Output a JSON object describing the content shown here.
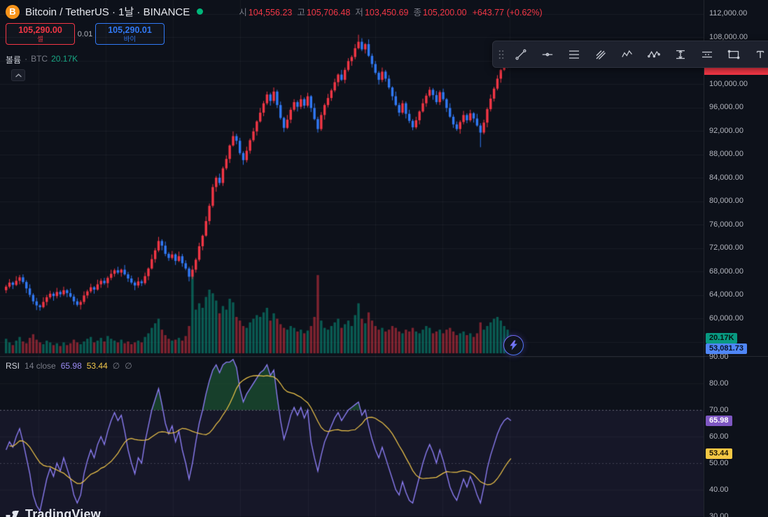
{
  "header": {
    "symbol_title": "Bitcoin / TetherUS · 1날 · BINANCE",
    "ohlc": {
      "open_label": "시",
      "open": "104,556.23",
      "high_label": "고",
      "high": "105,706.48",
      "low_label": "저",
      "low": "103,450.69",
      "close_label": "종",
      "close": "105,200.00",
      "change": "+643.77 (+0.62%)"
    }
  },
  "trade_widget": {
    "sell_price": "105,290.00",
    "sell_label": "셀",
    "spread": "0.01",
    "buy_price": "105,290.01",
    "buy_label": "바이"
  },
  "volume_legend": {
    "title": "볼륨",
    "separator": "·",
    "unit": "BTC",
    "value": "20.17K"
  },
  "rsi_legend": {
    "title": "RSI",
    "params": "14 close",
    "value": "65.98",
    "ma_value": "53.44",
    "extra1": "∅",
    "extra2": "∅"
  },
  "toolbar": {
    "tools": [
      "drag-handle",
      "trend-line",
      "horizontal-line",
      "fib-retracement",
      "pitchfork",
      "elliott-wave",
      "xabcd-pattern",
      "price-range",
      "parallel-channel",
      "rectangle",
      "text"
    ]
  },
  "axis": {
    "price_ticks": [
      {
        "label": "112,000.00",
        "value": 112000
      },
      {
        "label": "108,000.00",
        "value": 108000
      },
      {
        "label": "100,000.00",
        "value": 100000
      },
      {
        "label": "96,000.00",
        "value": 96000
      },
      {
        "label": "92,000.00",
        "value": 92000
      },
      {
        "label": "88,000.00",
        "value": 88000
      },
      {
        "label": "84,000.00",
        "value": 84000
      },
      {
        "label": "80,000.00",
        "value": 80000
      },
      {
        "label": "76,000.00",
        "value": 76000
      },
      {
        "label": "72,000.00",
        "value": 72000
      },
      {
        "label": "68,000.00",
        "value": 68000
      },
      {
        "label": "64,000.00",
        "value": 64000
      },
      {
        "label": "60,000.00",
        "value": 60000
      }
    ],
    "rsi_ticks": [
      {
        "label": "90.00",
        "value": 90
      },
      {
        "label": "80.00",
        "value": 80
      },
      {
        "label": "70.00",
        "value": 70
      },
      {
        "label": "60.00",
        "value": 60
      },
      {
        "label": "50.00",
        "value": 50
      },
      {
        "label": "40.00",
        "value": 40
      },
      {
        "label": "30.00",
        "value": 30
      }
    ],
    "volume_badges": {
      "volume": "20.17K",
      "volume_ma": "53,081.73"
    },
    "rsi_badges": {
      "value": "65.98",
      "ma": "53.44"
    }
  },
  "logo": {
    "text": "TradingView"
  },
  "colors": {
    "background": "#0d111a",
    "up": "#f23645",
    "down": "#3179f5",
    "volume_up": "rgba(8,153,129,0.55)",
    "volume_down": "rgba(242,54,69,0.5)",
    "rsi_line": "#8a7cf0",
    "rsi_ma": "#f0c64a",
    "rsi_badge": "#7e57c2",
    "rsi_ma_badge": "#f5c844",
    "volume_badge": "#089981",
    "volume_ma_badge": "#4f86f7",
    "price_badge": "#f23645",
    "status_dot": "#00b67a",
    "bitcoin": "#f7931a",
    "band_fill": "rgba(126,87,194,0.09)",
    "overbought_fill": "rgba(34,110,60,0.5)",
    "grid": "rgba(255,255,255,0.05)"
  },
  "chart_data": {
    "type": "candlestick",
    "symbol": "Bitcoin / TetherUS",
    "exchange": "BINANCE",
    "interval": "1D",
    "ohlc_today": {
      "open": 104556.23,
      "high": 105706.48,
      "low": 103450.69,
      "close": 105200.0,
      "change": 643.77,
      "change_pct": 0.62
    },
    "volume_current_btc": 20170,
    "volume_ma_current": 53081.73,
    "price_axis_visible_range": [
      56000,
      113000
    ],
    "candles": [
      [
        64800,
        65700,
        64300,
        65400
      ],
      [
        65400,
        66700,
        65100,
        66100
      ],
      [
        66100,
        66300,
        65000,
        65700
      ],
      [
        65700,
        67200,
        65500,
        66400
      ],
      [
        66400,
        67400,
        65800,
        67000
      ],
      [
        67000,
        67500,
        65900,
        66200
      ],
      [
        66200,
        66500,
        64300,
        65100
      ],
      [
        65100,
        65800,
        63600,
        64000
      ],
      [
        64000,
        64300,
        62400,
        62900
      ],
      [
        62900,
        63500,
        61400,
        62200
      ],
      [
        62200,
        62400,
        61300,
        61900
      ],
      [
        61900,
        63600,
        61700,
        62800
      ],
      [
        62800,
        64000,
        62200,
        63600
      ],
      [
        63600,
        64700,
        63300,
        64200
      ],
      [
        64200,
        64500,
        63000,
        63800
      ],
      [
        63800,
        65200,
        63400,
        64500
      ],
      [
        64500,
        64800,
        63600,
        64100
      ],
      [
        64100,
        65400,
        63800,
        64800
      ],
      [
        64800,
        65000,
        63600,
        64300
      ],
      [
        64300,
        65100,
        63500,
        63700
      ],
      [
        63700,
        64100,
        62300,
        62900
      ],
      [
        62900,
        63400,
        62000,
        62300
      ],
      [
        62300,
        63100,
        61500,
        62800
      ],
      [
        62800,
        64600,
        62400,
        63900
      ],
      [
        63900,
        64900,
        63400,
        64600
      ],
      [
        64600,
        65900,
        64300,
        65300
      ],
      [
        65300,
        65500,
        64200,
        64900
      ],
      [
        64900,
        66600,
        64700,
        65800
      ],
      [
        65800,
        66800,
        65200,
        66400
      ],
      [
        66400,
        66900,
        65700,
        66000
      ],
      [
        66000,
        67200,
        65200,
        66900
      ],
      [
        66900,
        68300,
        66500,
        67600
      ],
      [
        67600,
        68500,
        67100,
        68200
      ],
      [
        68200,
        68800,
        67500,
        67800
      ],
      [
        67800,
        68500,
        67100,
        68300
      ],
      [
        68300,
        69100,
        67300,
        67500
      ],
      [
        67500,
        67900,
        66200,
        66800
      ],
      [
        66800,
        67300,
        65800,
        66100
      ],
      [
        66100,
        66400,
        64800,
        65600
      ],
      [
        65600,
        67000,
        65200,
        66300
      ],
      [
        66300,
        66600,
        65500,
        66000
      ],
      [
        66000,
        67800,
        65700,
        67200
      ],
      [
        67200,
        68700,
        66500,
        68500
      ],
      [
        68500,
        70900,
        68300,
        70100
      ],
      [
        70100,
        72000,
        69500,
        71600
      ],
      [
        71600,
        73900,
        71300,
        73200
      ],
      [
        73200,
        73500,
        71600,
        72400
      ],
      [
        72400,
        73100,
        70600,
        71000
      ],
      [
        71000,
        71300,
        69800,
        70300
      ],
      [
        70300,
        71500,
        70000,
        70900
      ],
      [
        70900,
        71100,
        69100,
        69800
      ],
      [
        69800,
        71400,
        69600,
        70600
      ],
      [
        70600,
        71000,
        68800,
        69400
      ],
      [
        69400,
        69900,
        68200,
        68500
      ],
      [
        68500,
        68800,
        66300,
        67100
      ],
      [
        67100,
        69000,
        66700,
        68300
      ],
      [
        68300,
        70300,
        67800,
        70000
      ],
      [
        70000,
        72900,
        69700,
        72300
      ],
      [
        72300,
        74300,
        71600,
        74100
      ],
      [
        74100,
        77400,
        73900,
        76600
      ],
      [
        76600,
        79600,
        76000,
        79200
      ],
      [
        79200,
        82900,
        78900,
        82400
      ],
      [
        82400,
        84300,
        81600,
        84000
      ],
      [
        84000,
        84700,
        82700,
        83100
      ],
      [
        83100,
        85900,
        82600,
        85600
      ],
      [
        85600,
        87800,
        85300,
        87200
      ],
      [
        87200,
        89700,
        86500,
        89500
      ],
      [
        89500,
        91900,
        89300,
        91100
      ],
      [
        91100,
        91500,
        89700,
        90300
      ],
      [
        90300,
        90800,
        87900,
        88200
      ],
      [
        88200,
        88500,
        86200,
        87000
      ],
      [
        87000,
        89300,
        86600,
        88600
      ],
      [
        88600,
        90700,
        88100,
        90400
      ],
      [
        90400,
        92500,
        90100,
        91900
      ],
      [
        91900,
        93800,
        91200,
        93600
      ],
      [
        93600,
        95900,
        93400,
        95100
      ],
      [
        95100,
        97100,
        94500,
        96700
      ],
      [
        96700,
        98700,
        96400,
        98200
      ],
      [
        98200,
        98500,
        96300,
        97100
      ],
      [
        97100,
        99400,
        96700,
        98700
      ],
      [
        98700,
        99000,
        95900,
        96400
      ],
      [
        96400,
        97000,
        93900,
        94200
      ],
      [
        94200,
        94400,
        91800,
        92500
      ],
      [
        92500,
        94700,
        92300,
        93900
      ],
      [
        93900,
        96000,
        93300,
        95600
      ],
      [
        95600,
        97400,
        95300,
        96900
      ],
      [
        96900,
        97200,
        95300,
        96100
      ],
      [
        96100,
        98100,
        95700,
        97400
      ],
      [
        97400,
        97700,
        95800,
        96300
      ],
      [
        96300,
        98500,
        96000,
        97900
      ],
      [
        97900,
        98100,
        95200,
        95900
      ],
      [
        95900,
        96700,
        93800,
        94000
      ],
      [
        94000,
        94400,
        91700,
        92300
      ],
      [
        92300,
        95200,
        92000,
        94700
      ],
      [
        94700,
        96700,
        93900,
        96400
      ],
      [
        96400,
        98300,
        96000,
        97600
      ],
      [
        97600,
        99200,
        97100,
        98900
      ],
      [
        98900,
        100900,
        98600,
        100300
      ],
      [
        100300,
        101800,
        99600,
        101600
      ],
      [
        101600,
        102400,
        100500,
        100700
      ],
      [
        100700,
        102800,
        100100,
        102400
      ],
      [
        102400,
        104400,
        102100,
        103900
      ],
      [
        103900,
        104900,
        103100,
        104600
      ],
      [
        104600,
        106800,
        104200,
        106100
      ],
      [
        106100,
        108400,
        105900,
        107200
      ],
      [
        107200,
        107800,
        105600,
        105900
      ],
      [
        105900,
        107000,
        105200,
        106800
      ],
      [
        106800,
        107600,
        104600,
        104800
      ],
      [
        104800,
        105200,
        102800,
        103400
      ],
      [
        103400,
        103900,
        101600,
        101900
      ],
      [
        101900,
        102200,
        99900,
        100700
      ],
      [
        100700,
        102800,
        100300,
        102100
      ],
      [
        102100,
        102400,
        100400,
        100900
      ],
      [
        100900,
        101500,
        99100,
        99400
      ],
      [
        99400,
        99600,
        97200,
        97900
      ],
      [
        97900,
        98700,
        96200,
        96400
      ],
      [
        96400,
        96800,
        94500,
        95100
      ],
      [
        95100,
        97200,
        94800,
        96700
      ],
      [
        96700,
        97000,
        94100,
        94900
      ],
      [
        94900,
        95600,
        93300,
        93700
      ],
      [
        93700,
        94000,
        92100,
        92600
      ],
      [
        92600,
        94400,
        92300,
        93800
      ],
      [
        93800,
        95500,
        93100,
        95300
      ],
      [
        95300,
        97500,
        95100,
        96700
      ],
      [
        96700,
        98400,
        96100,
        98000
      ],
      [
        98000,
        99500,
        97700,
        99000
      ],
      [
        99000,
        99300,
        97300,
        98100
      ],
      [
        98100,
        98800,
        96500,
        96900
      ],
      [
        96900,
        98900,
        96400,
        98600
      ],
      [
        98600,
        99200,
        97100,
        97400
      ],
      [
        97400,
        97600,
        95200,
        95900
      ],
      [
        95900,
        96700,
        94200,
        94400
      ],
      [
        94400,
        94800,
        92500,
        93100
      ],
      [
        93100,
        93600,
        92000,
        92300
      ],
      [
        92300,
        93800,
        91500,
        93500
      ],
      [
        93500,
        95400,
        93100,
        94700
      ],
      [
        94700,
        95000,
        93300,
        93800
      ],
      [
        93800,
        95600,
        93500,
        95000
      ],
      [
        95000,
        95200,
        93400,
        94100
      ],
      [
        94100,
        94900,
        92700,
        92900
      ],
      [
        92900,
        93300,
        89200,
        91700
      ],
      [
        91700,
        93900,
        91400,
        93400
      ],
      [
        93400,
        96000,
        92600,
        95700
      ],
      [
        95700,
        98200,
        95300,
        97500
      ],
      [
        97500,
        99500,
        97000,
        99200
      ],
      [
        99200,
        101500,
        98900,
        100900
      ],
      [
        100900,
        102600,
        100200,
        102400
      ],
      [
        102400,
        104100,
        102200,
        103300
      ],
      [
        103300,
        104956,
        102700,
        104556
      ],
      [
        104556,
        105706,
        103451,
        105200
      ]
    ],
    "volumes": [
      16,
      12,
      9,
      14,
      18,
      13,
      11,
      17,
      21,
      15,
      12,
      10,
      14,
      12,
      9,
      11,
      8,
      12,
      9,
      11,
      15,
      12,
      10,
      13,
      16,
      18,
      12,
      14,
      17,
      13,
      19,
      16,
      14,
      12,
      15,
      11,
      13,
      10,
      12,
      14,
      12,
      18,
      22,
      28,
      33,
      38,
      26,
      20,
      16,
      14,
      15,
      17,
      14,
      19,
      30,
      92,
      48,
      55,
      50,
      62,
      70,
      66,
      58,
      44,
      52,
      48,
      60,
      56,
      40,
      36,
      30,
      28,
      34,
      38,
      42,
      40,
      45,
      50,
      36,
      44,
      38,
      32,
      28,
      26,
      30,
      28,
      24,
      26,
      22,
      25,
      30,
      40,
      86,
      36,
      28,
      26,
      30,
      34,
      38,
      28,
      32,
      36,
      30,
      42,
      55,
      38,
      33,
      45,
      36,
      30,
      26,
      28,
      24,
      26,
      30,
      28,
      24,
      22,
      26,
      24,
      28,
      24,
      22,
      26,
      30,
      28,
      22,
      24,
      26,
      22,
      26,
      28,
      24,
      20,
      22,
      24,
      20,
      22,
      18,
      22,
      34,
      26,
      30,
      34,
      38,
      40,
      36,
      30,
      26,
      20.17
    ],
    "rsi": {
      "length": 14,
      "source": "close",
      "current": 65.98,
      "ma_current": 53.44,
      "overbought": 70,
      "midline": 50,
      "oversold": 30,
      "values": [
        55,
        58,
        56,
        60,
        63,
        58,
        52,
        46,
        38,
        34,
        32,
        38,
        44,
        48,
        45,
        50,
        47,
        52,
        48,
        44,
        38,
        35,
        38,
        46,
        51,
        55,
        52,
        57,
        60,
        57,
        62,
        66,
        69,
        66,
        68,
        62,
        55,
        50,
        46,
        52,
        50,
        58,
        64,
        70,
        74,
        78,
        72,
        65,
        61,
        64,
        58,
        62,
        55,
        50,
        44,
        50,
        58,
        65,
        70,
        76,
        81,
        85,
        87,
        84,
        87,
        88,
        88,
        89,
        86,
        78,
        73,
        76,
        78,
        80,
        82,
        84,
        85,
        87,
        83,
        85,
        75,
        66,
        59,
        63,
        68,
        71,
        68,
        71,
        67,
        70,
        58,
        52,
        47,
        53,
        58,
        61,
        64,
        67,
        69,
        66,
        68,
        70,
        71,
        72,
        73,
        68,
        70,
        64,
        59,
        55,
        52,
        56,
        52,
        48,
        44,
        40,
        38,
        43,
        39,
        36,
        35,
        40,
        45,
        50,
        54,
        57,
        54,
        50,
        55,
        51,
        46,
        41,
        38,
        36,
        40,
        44,
        41,
        45,
        42,
        38,
        35,
        41,
        48,
        53,
        57,
        61,
        64,
        66,
        67,
        66
      ]
    }
  }
}
